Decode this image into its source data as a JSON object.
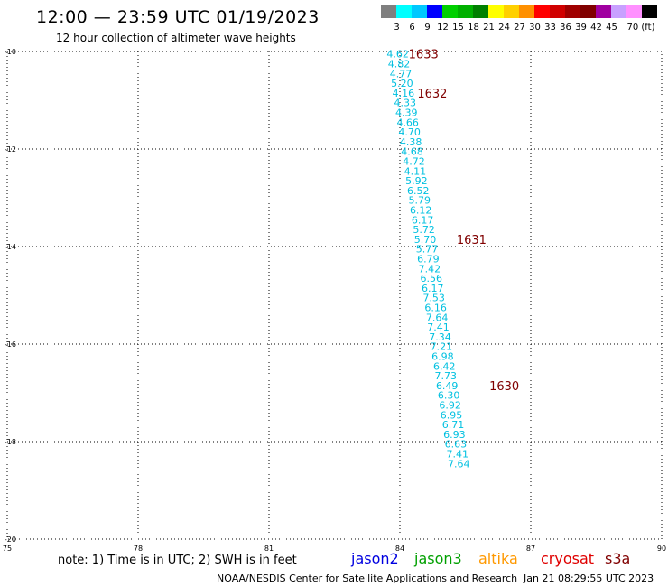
{
  "header": {
    "title": "12:00 — 23:59 UTC 01/19/2023",
    "subtitle": "12 hour collection of altimeter wave heights"
  },
  "colorbar": {
    "colors": [
      "#7f7f7f",
      "#00ffff",
      "#00c8ff",
      "#0000ff",
      "#00d000",
      "#00b000",
      "#008000",
      "#ffff00",
      "#ffd000",
      "#ff9000",
      "#ff0000",
      "#d00000",
      "#a00000",
      "#800000",
      "#a000a0",
      "#c8a0ff",
      "#ff90ff",
      "#000000"
    ],
    "labels": [
      "3",
      "6",
      "9",
      "12",
      "15",
      "18",
      "21",
      "24",
      "27",
      "30",
      "33",
      "36",
      "39",
      "42",
      "45",
      "70 (ft)"
    ]
  },
  "chart_data": {
    "type": "scatter",
    "title": "12:00 — 23:59 UTC 01/19/2023",
    "xlim": [
      75,
      90
    ],
    "ylim": [
      -20,
      -10
    ],
    "x_ticks": [
      "75",
      "78",
      "81",
      "84",
      "87",
      "90"
    ],
    "y_ticks": [
      "-10",
      "-12",
      "-14",
      "-16",
      "-18",
      "-20"
    ],
    "grid": true,
    "point_color": "#00c0e0",
    "time_color": "#800000",
    "points": [
      {
        "x": 83.95,
        "y": -10.05,
        "label": "4.62"
      },
      {
        "x": 83.98,
        "y": -10.25,
        "label": "4.82"
      },
      {
        "x": 84.02,
        "y": -10.45,
        "label": "4.77"
      },
      {
        "x": 84.05,
        "y": -10.65,
        "label": "5.20"
      },
      {
        "x": 84.08,
        "y": -10.85,
        "label": "4.16"
      },
      {
        "x": 84.12,
        "y": -11.05,
        "label": "4.33"
      },
      {
        "x": 84.15,
        "y": -11.25,
        "label": "4.39"
      },
      {
        "x": 84.18,
        "y": -11.45,
        "label": "4.66"
      },
      {
        "x": 84.22,
        "y": -11.65,
        "label": "4.70"
      },
      {
        "x": 84.25,
        "y": -11.85,
        "label": "4.38"
      },
      {
        "x": 84.28,
        "y": -12.05,
        "label": "4.68"
      },
      {
        "x": 84.32,
        "y": -12.25,
        "label": "4.72"
      },
      {
        "x": 84.35,
        "y": -12.45,
        "label": "4.11"
      },
      {
        "x": 84.38,
        "y": -12.65,
        "label": "5.92"
      },
      {
        "x": 84.42,
        "y": -12.85,
        "label": "6.52"
      },
      {
        "x": 84.45,
        "y": -13.05,
        "label": "5.79"
      },
      {
        "x": 84.48,
        "y": -13.25,
        "label": "6.12"
      },
      {
        "x": 84.52,
        "y": -13.45,
        "label": "6.17"
      },
      {
        "x": 84.55,
        "y": -13.65,
        "label": "5.72"
      },
      {
        "x": 84.58,
        "y": -13.85,
        "label": "5.70"
      },
      {
        "x": 84.62,
        "y": -14.05,
        "label": "5.77"
      },
      {
        "x": 84.65,
        "y": -14.25,
        "label": "6.79"
      },
      {
        "x": 84.68,
        "y": -14.45,
        "label": "7.42"
      },
      {
        "x": 84.72,
        "y": -14.65,
        "label": "6.56"
      },
      {
        "x": 84.75,
        "y": -14.85,
        "label": "6.17"
      },
      {
        "x": 84.78,
        "y": -15.05,
        "label": "7.53"
      },
      {
        "x": 84.82,
        "y": -15.25,
        "label": "6.16"
      },
      {
        "x": 84.85,
        "y": -15.45,
        "label": "7.64"
      },
      {
        "x": 84.88,
        "y": -15.65,
        "label": "7.41"
      },
      {
        "x": 84.92,
        "y": -15.85,
        "label": "7.34"
      },
      {
        "x": 84.95,
        "y": -16.05,
        "label": "7.21"
      },
      {
        "x": 84.98,
        "y": -16.25,
        "label": "6.98"
      },
      {
        "x": 85.02,
        "y": -16.45,
        "label": "6.42"
      },
      {
        "x": 85.05,
        "y": -16.65,
        "label": "7.73"
      },
      {
        "x": 85.08,
        "y": -16.85,
        "label": "6.49"
      },
      {
        "x": 85.12,
        "y": -17.05,
        "label": "6.30"
      },
      {
        "x": 85.15,
        "y": -17.25,
        "label": "6.92"
      },
      {
        "x": 85.18,
        "y": -17.45,
        "label": "6.95"
      },
      {
        "x": 85.22,
        "y": -17.65,
        "label": "6.71"
      },
      {
        "x": 85.25,
        "y": -17.85,
        "label": "6.93"
      },
      {
        "x": 85.28,
        "y": -18.05,
        "label": "6.63"
      },
      {
        "x": 85.32,
        "y": -18.25,
        "label": "7.41"
      },
      {
        "x": 85.35,
        "y": -18.45,
        "label": "7.64"
      }
    ],
    "time_labels": [
      {
        "x": 84.2,
        "y": -10.05,
        "label": "1633"
      },
      {
        "x": 84.4,
        "y": -10.85,
        "label": "1632"
      },
      {
        "x": 85.3,
        "y": -13.85,
        "label": "1631"
      },
      {
        "x": 86.05,
        "y": -16.85,
        "label": "1630"
      }
    ]
  },
  "footer": {
    "note": "note: 1) Time is in UTC; 2) SWH is in feet",
    "legend": [
      {
        "name": "jason2",
        "color": "#0000e0"
      },
      {
        "name": "jason3",
        "color": "#00a000"
      },
      {
        "name": "altika",
        "color": "#ff9900"
      },
      {
        "name": "cryosat",
        "color": "#e00000"
      },
      {
        "name": "s3a",
        "color": "#800000"
      }
    ],
    "credit": "NOAA/NESDIS Center for Satellite Applications and Research",
    "timestamp": "Jan 21 08:29:55 UTC 2023"
  }
}
